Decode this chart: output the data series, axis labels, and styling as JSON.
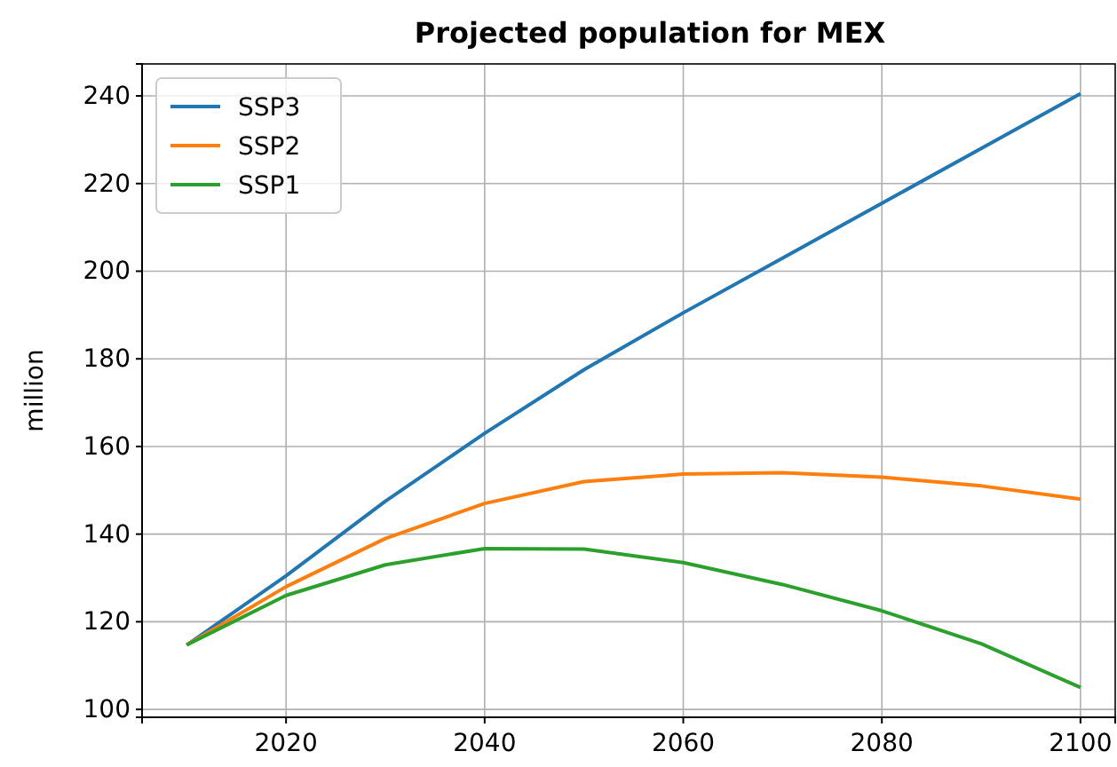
{
  "chart_data": {
    "type": "line",
    "title": "Projected population for MEX",
    "ylabel": "million",
    "x": [
      2010,
      2020,
      2030,
      2040,
      2050,
      2060,
      2070,
      2080,
      2090,
      2100
    ],
    "series": [
      {
        "name": "SSP3",
        "color": "#1f77b4",
        "values": [
          114.7,
          130.5,
          147.5,
          163,
          177.5,
          190.5,
          203,
          215.5,
          228,
          240.5
        ]
      },
      {
        "name": "SSP2",
        "color": "#ff7f0e",
        "values": [
          114.7,
          128,
          139,
          147,
          152,
          153.7,
          154,
          153,
          151,
          148
        ]
      },
      {
        "name": "SSP1",
        "color": "#2ca02c",
        "values": [
          114.7,
          126,
          133,
          136.7,
          136.6,
          133.5,
          128.5,
          122.5,
          115,
          105
        ]
      }
    ],
    "xlim": [
      2005.5,
      2103.5
    ],
    "ylim": [
      98.2,
      247.3
    ],
    "xticks": [
      2020,
      2040,
      2060,
      2080,
      2100
    ],
    "yticks": [
      100,
      120,
      140,
      160,
      180,
      200,
      220,
      240
    ],
    "grid": true,
    "legend": "top left",
    "marker": "none",
    "line_style": "solid"
  }
}
